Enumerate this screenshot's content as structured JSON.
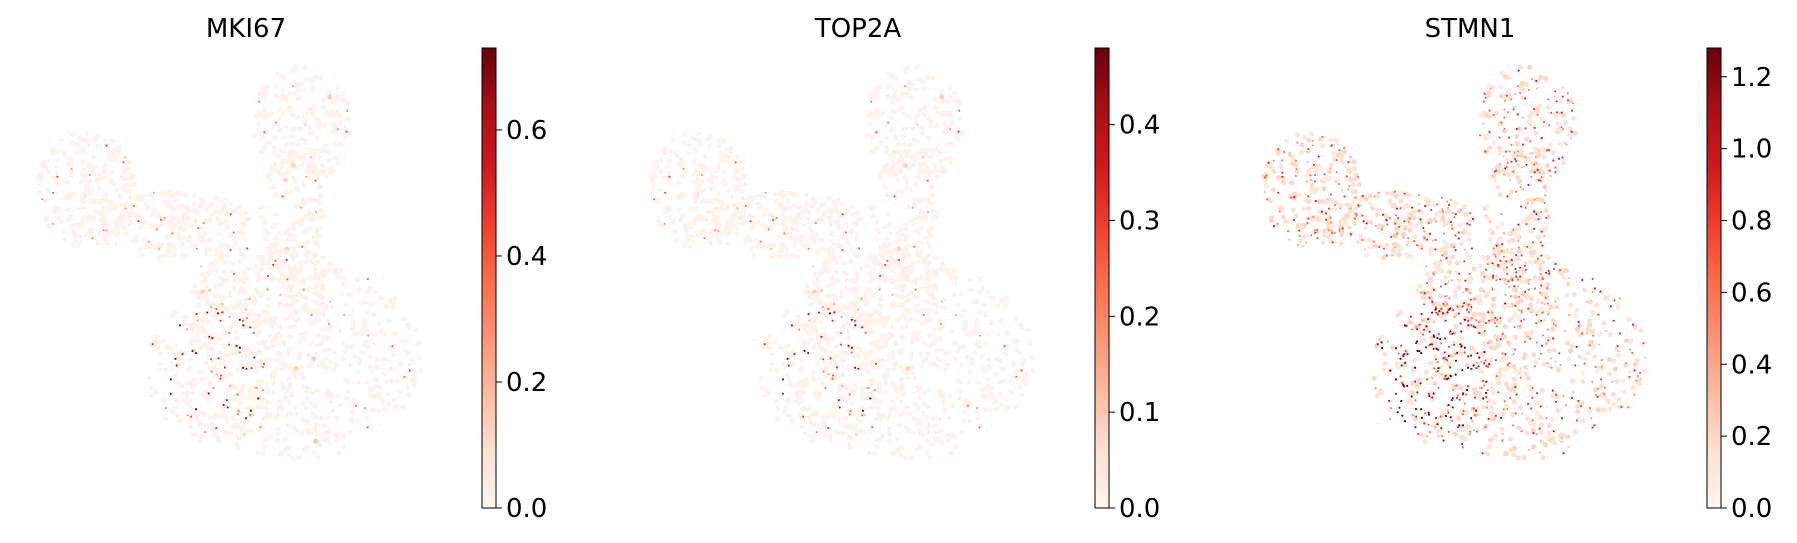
{
  "chart_data": [
    {
      "type": "scatter",
      "title": "MKI67",
      "xlabel": "",
      "ylabel": "",
      "colorbar": {
        "colormap": "Reds",
        "range": [
          0,
          0.73
        ],
        "ticks": [
          0.0,
          0.2,
          0.4,
          0.6
        ],
        "tick_labels": [
          "0.0",
          "0.2",
          "0.4",
          "0.6"
        ]
      },
      "expression": {
        "background": 0.02,
        "sparsity": 0.06,
        "hotspot_region": "lower-left lobe",
        "hotspot_strength": 0.5
      }
    },
    {
      "type": "scatter",
      "title": "TOP2A",
      "xlabel": "",
      "ylabel": "",
      "colorbar": {
        "colormap": "Reds",
        "range": [
          0,
          0.48
        ],
        "ticks": [
          0.0,
          0.1,
          0.2,
          0.3,
          0.4
        ],
        "tick_labels": [
          "0.0",
          "0.1",
          "0.2",
          "0.3",
          "0.4"
        ]
      },
      "expression": {
        "background": 0.02,
        "sparsity": 0.05,
        "hotspot_region": "lower-left lobe",
        "hotspot_strength": 0.4
      }
    },
    {
      "type": "scatter",
      "title": "STMN1",
      "xlabel": "",
      "ylabel": "",
      "colorbar": {
        "colormap": "Reds",
        "range": [
          0,
          1.28
        ],
        "ticks": [
          0.0,
          0.2,
          0.4,
          0.6,
          0.8,
          1.0,
          1.2
        ],
        "tick_labels": [
          "0.0",
          "0.2",
          "0.4",
          "0.6",
          "0.8",
          "1.0",
          "1.2"
        ]
      },
      "expression": {
        "background": 0.12,
        "sparsity": 0.45,
        "hotspot_region": "lower-left lobe",
        "hotspot_strength": 0.8
      }
    }
  ],
  "colors": {
    "reds_low": "#fff5f0",
    "reds_mid": "#fb6a4a",
    "reds_high": "#67000d",
    "axis": "#000000"
  }
}
